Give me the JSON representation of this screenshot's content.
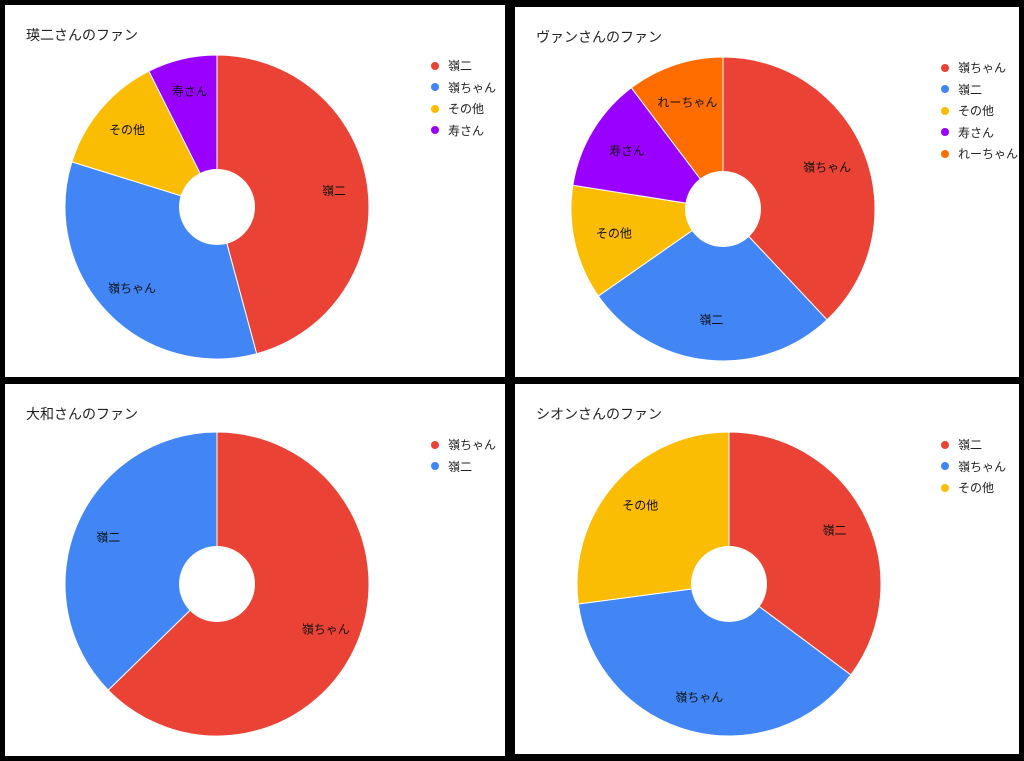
{
  "chart_data": [
    {
      "type": "pie",
      "title": "瑛二さんのファン",
      "donut": true,
      "categories": [
        "嶺二",
        "嶺ちゃん",
        "その他",
        "寿さん"
      ],
      "values": [
        45.8,
        34.0,
        12.8,
        7.4
      ],
      "colors": [
        "#EA4335",
        "#4285F4",
        "#FBBC04",
        "#9A00FF"
      ],
      "legend_position": "right"
    },
    {
      "type": "pie",
      "title": "ヴァンさんのファン",
      "donut": true,
      "categories": [
        "嶺ちゃん",
        "嶺二",
        "その他",
        "寿さん",
        "れーちゃん"
      ],
      "values": [
        38.0,
        27.3,
        12.2,
        12.2,
        10.3
      ],
      "colors": [
        "#EA4335",
        "#4285F4",
        "#FBBC04",
        "#9A00FF",
        "#FF6D01"
      ],
      "legend_position": "right"
    },
    {
      "type": "pie",
      "title": "大和さんのファン",
      "donut": true,
      "categories": [
        "嶺ちゃん",
        "嶺二"
      ],
      "values": [
        62.7,
        37.3
      ],
      "colors": [
        "#EA4335",
        "#4285F4"
      ],
      "legend_position": "right"
    },
    {
      "type": "pie",
      "title": "シオンさんのファン",
      "donut": true,
      "categories": [
        "嶺二",
        "嶺ちゃん",
        "その他"
      ],
      "values": [
        35.2,
        37.7,
        27.1
      ],
      "colors": [
        "#EA4335",
        "#4285F4",
        "#FBBC04"
      ],
      "legend_position": "right"
    }
  ]
}
